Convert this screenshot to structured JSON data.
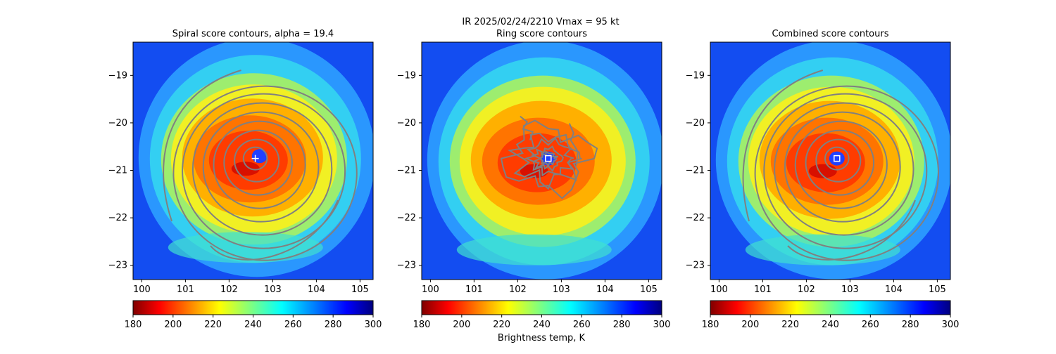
{
  "figure": {
    "suptitle": "IR  2025/02/24/2210    Vmax = 95 kt",
    "colorbar_label": "Brightness temp, K"
  },
  "colors": {
    "contour": "#808080",
    "center_marker": "#ffffff",
    "colormap": "jet_r"
  },
  "chart_data": [
    {
      "type": "heatmap",
      "title": "Spiral score contours, alpha = 19.4",
      "xlim": [
        99.8,
        105.3
      ],
      "ylim": [
        -23.3,
        -18.3
      ],
      "xticks": [
        "100",
        "101",
        "102",
        "103",
        "104",
        "105"
      ],
      "yticks": [
        "−19",
        "−20",
        "−21",
        "−22",
        "−23"
      ],
      "storm_center": [
        102.6,
        -20.75
      ],
      "eye_center": [
        102.7,
        -20.7
      ],
      "center_marker": "plus",
      "contour_style": "spiral",
      "colorbar": {
        "range": [
          180,
          300
        ],
        "ticks": [
          "180",
          "200",
          "220",
          "240",
          "260",
          "280",
          "300"
        ]
      }
    },
    {
      "type": "heatmap",
      "title": "Ring score contours",
      "xlim": [
        99.8,
        105.3
      ],
      "ylim": [
        -23.3,
        -18.3
      ],
      "xticks": [
        "100",
        "101",
        "102",
        "103",
        "104",
        "105"
      ],
      "yticks": [
        "−19",
        "−20",
        "−21",
        "−22",
        "−23"
      ],
      "storm_center": [
        102.7,
        -20.75
      ],
      "eye_center": [
        102.7,
        -20.75
      ],
      "center_marker": "square",
      "contour_style": "ring",
      "colorbar": {
        "range": [
          180,
          300
        ],
        "ticks": [
          "180",
          "200",
          "220",
          "240",
          "260",
          "280",
          "300"
        ]
      }
    },
    {
      "type": "heatmap",
      "title": "Combined score contours",
      "xlim": [
        99.8,
        105.3
      ],
      "ylim": [
        -23.3,
        -18.3
      ],
      "xticks": [
        "100",
        "101",
        "102",
        "103",
        "104",
        "105"
      ],
      "yticks": [
        "−19",
        "−20",
        "−21",
        "−22",
        "−23"
      ],
      "storm_center": [
        102.7,
        -20.75
      ],
      "eye_center": [
        102.7,
        -20.75
      ],
      "center_marker": "square",
      "contour_style": "spiral",
      "colorbar": {
        "range": [
          180,
          300
        ],
        "ticks": [
          "180",
          "200",
          "220",
          "240",
          "260",
          "280",
          "300"
        ]
      }
    }
  ]
}
